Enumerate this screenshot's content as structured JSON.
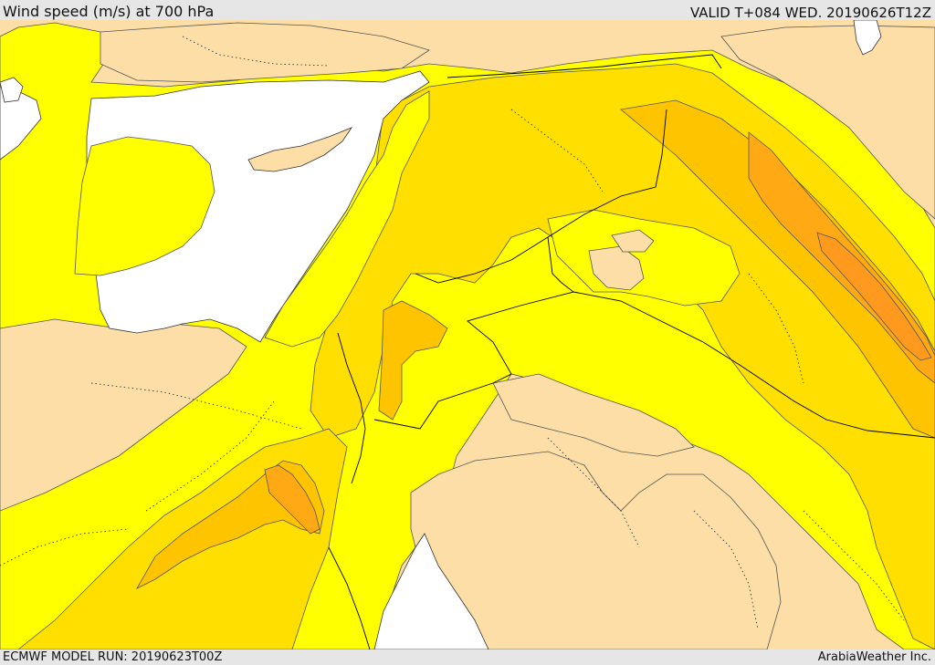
{
  "header": {
    "title": "Wind speed (m/s) at 700 hPa",
    "valid": "VALID T+084 WED. 20190626T12Z"
  },
  "footer": {
    "model_run": "ECMWF MODEL RUN: 20190623T00Z",
    "credit": "ArabiaWeather Inc."
  },
  "colors": {
    "sea": "#ffffff",
    "band_low": "#fddea7",
    "band_1": "#ffff00",
    "band_2": "#ffdf00",
    "band_3": "#ffc400",
    "band_4": "#ffa915",
    "band_5": "#ff9a1f"
  }
}
